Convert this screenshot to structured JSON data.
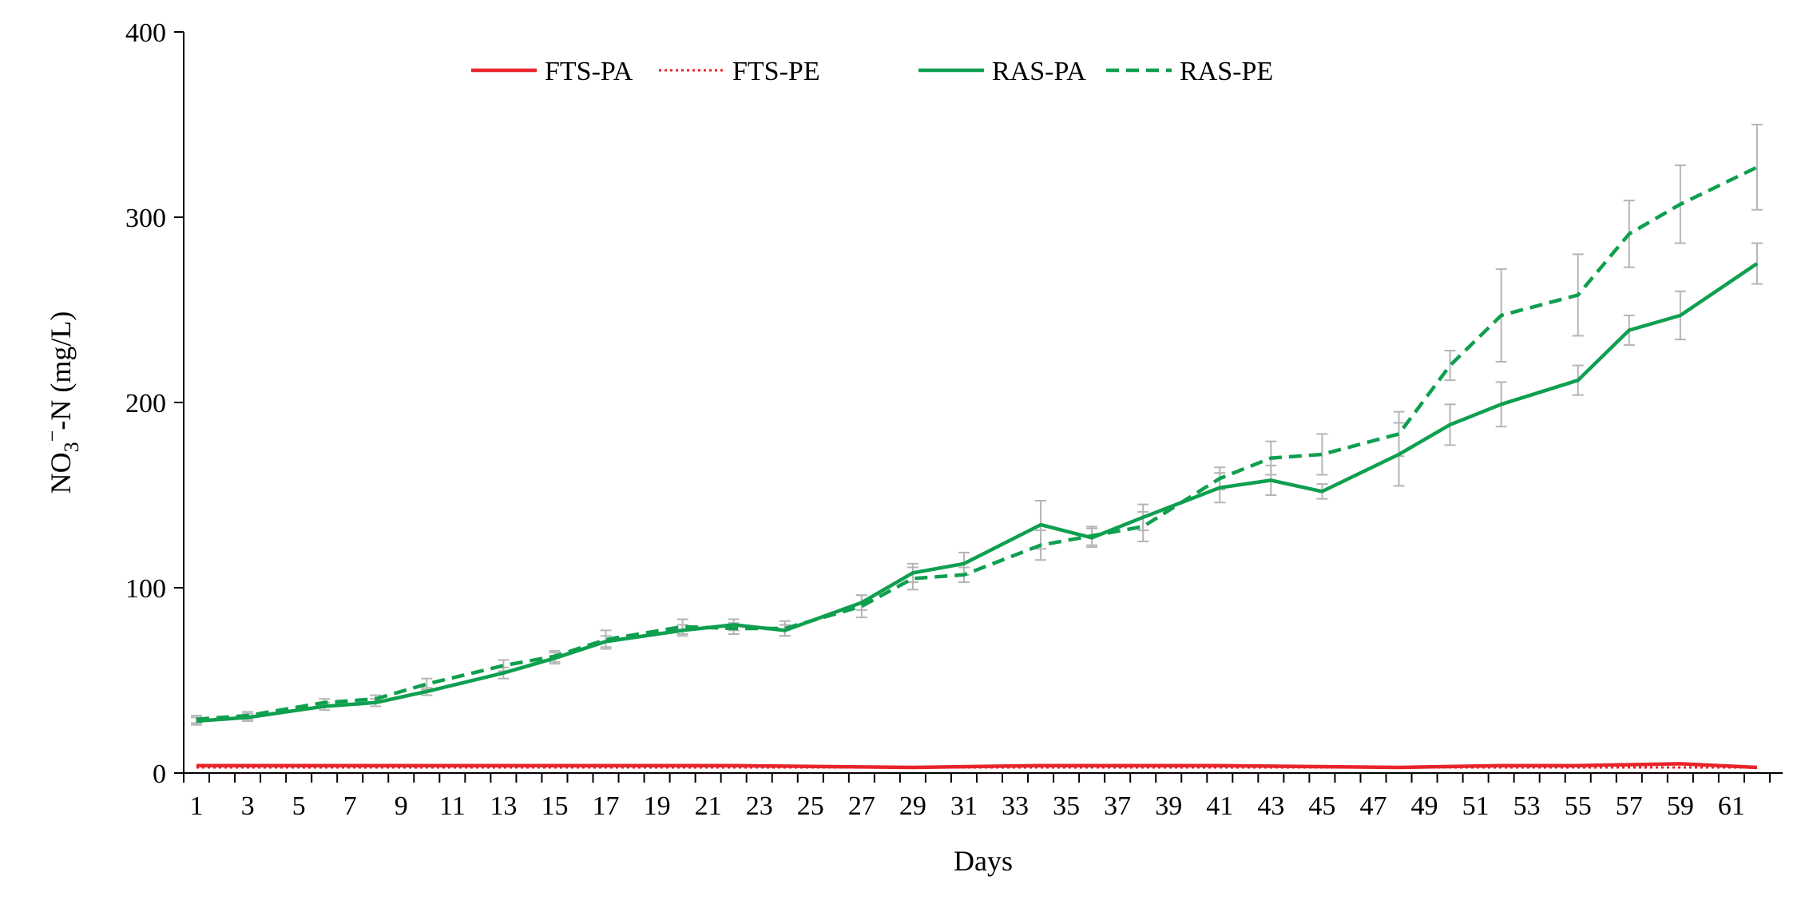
{
  "chart_data": {
    "type": "line",
    "title": "",
    "xlabel": "Days",
    "ylabel_main": "NO",
    "ylabel_sub": "3",
    "ylabel_sup": "−",
    "ylabel_rest": "-N (mg/L)",
    "xlim": [
      1,
      62
    ],
    "ylim": [
      0,
      400
    ],
    "yticks": [
      "0",
      "100",
      "200",
      "300",
      "400"
    ],
    "xticks": [
      "1",
      "3",
      "5",
      "7",
      "9",
      "11",
      "13",
      "15",
      "17",
      "19",
      "21",
      "23",
      "25",
      "27",
      "29",
      "31",
      "33",
      "35",
      "37",
      "39",
      "41",
      "43",
      "45",
      "47",
      "49",
      "51",
      "53",
      "55",
      "57",
      "59",
      "61"
    ],
    "grid": false,
    "legend_position": "top-center",
    "series": [
      {
        "name": "FTS-PA",
        "color": "#e8232a",
        "style": "solid",
        "x": [
          1,
          8,
          15,
          22,
          29,
          34,
          41,
          48,
          52,
          55,
          59,
          62
        ],
        "y": [
          4,
          4,
          4,
          4,
          3,
          4,
          4,
          3,
          4,
          4,
          5,
          3
        ]
      },
      {
        "name": "FTS-PE",
        "color": "#e8232a",
        "style": "dotted",
        "x": [
          1,
          8,
          15,
          22,
          29,
          36,
          43,
          50,
          55,
          59,
          62
        ],
        "y": [
          3,
          3,
          3,
          3,
          3,
          3,
          3,
          3,
          3,
          3,
          3
        ]
      },
      {
        "name": "RAS-PA",
        "color": "#0e9f4f",
        "style": "solid",
        "x": [
          1,
          3,
          6,
          8,
          10,
          13,
          15,
          17,
          20,
          22,
          24,
          27,
          29,
          31,
          34,
          36,
          38,
          41,
          43,
          45,
          48,
          50,
          52,
          55,
          57,
          59,
          62
        ],
        "y": [
          28,
          30,
          36,
          38,
          44,
          54,
          62,
          71,
          77,
          80,
          77,
          92,
          108,
          113,
          134,
          127,
          138,
          154,
          158,
          152,
          172,
          188,
          199,
          212,
          239,
          247,
          275
        ],
        "err": [
          2,
          2,
          2,
          2,
          2,
          3,
          3,
          3,
          3,
          3,
          3,
          4,
          5,
          6,
          13,
          5,
          7,
          8,
          8,
          4,
          17,
          11,
          12,
          8,
          8,
          13,
          11
        ]
      },
      {
        "name": "RAS-PE",
        "color": "#0e9f4f",
        "style": "dashed",
        "x": [
          1,
          3,
          6,
          8,
          10,
          13,
          15,
          17,
          20,
          22,
          24,
          27,
          29,
          31,
          34,
          36,
          38,
          41,
          43,
          45,
          48,
          50,
          52,
          55,
          57,
          59,
          62
        ],
        "y": [
          29,
          31,
          38,
          40,
          48,
          58,
          63,
          72,
          79,
          78,
          78,
          90,
          105,
          107,
          123,
          128,
          133,
          159,
          170,
          172,
          183,
          220,
          247,
          258,
          291,
          307,
          327
        ],
        "err": [
          2,
          2,
          2,
          2,
          3,
          3,
          3,
          5,
          4,
          3,
          4,
          6,
          6,
          4,
          8,
          5,
          8,
          6,
          9,
          11,
          12,
          8,
          25,
          22,
          18,
          21,
          23
        ]
      }
    ]
  }
}
